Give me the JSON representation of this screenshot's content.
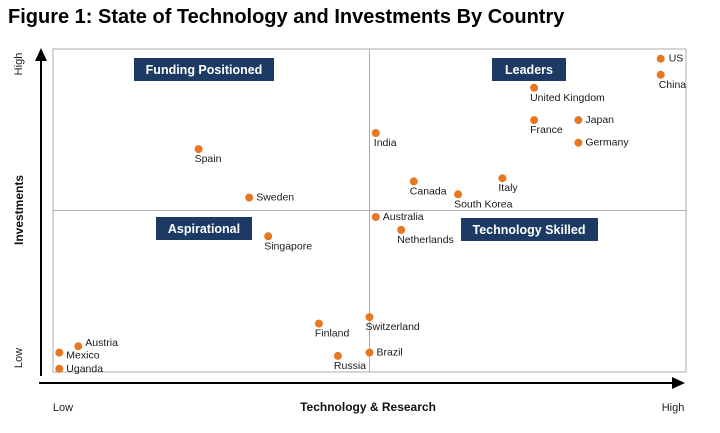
{
  "title": "Figure 1: State of Technology and Investments By Country",
  "colors": {
    "marker": "#e87722",
    "quadrant_box": "#1c3a64",
    "quadrant_text": "#ffffff",
    "border": "#9a9a9a",
    "axis": "#000000"
  },
  "chart_data": {
    "type": "scatter",
    "title": "Figure 1: State of Technology and Investments By Country",
    "xlabel": "Technology & Research",
    "ylabel": "Investments",
    "x_ticks": [
      "Low",
      "High"
    ],
    "y_ticks": [
      "Low",
      "High"
    ],
    "xlim": [
      0,
      100
    ],
    "ylim": [
      0,
      100
    ],
    "grid": false,
    "quadrant_dividers": {
      "x": 50,
      "y": 50
    },
    "quadrant_labels": [
      "Funding Positioned",
      "Leaders",
      "Aspirational",
      "Technology Skilled"
    ],
    "points": [
      {
        "label": "US",
        "x": 96,
        "y": 97
      },
      {
        "label": "China",
        "x": 96,
        "y": 92
      },
      {
        "label": "United Kingdom",
        "x": 76,
        "y": 88
      },
      {
        "label": "Japan",
        "x": 83,
        "y": 78
      },
      {
        "label": "France",
        "x": 76,
        "y": 78
      },
      {
        "label": "Germany",
        "x": 83,
        "y": 71
      },
      {
        "label": "India",
        "x": 51,
        "y": 74
      },
      {
        "label": "Spain",
        "x": 23,
        "y": 69
      },
      {
        "label": "Canada",
        "x": 57,
        "y": 59
      },
      {
        "label": "Italy",
        "x": 71,
        "y": 60
      },
      {
        "label": "South Korea",
        "x": 64,
        "y": 55
      },
      {
        "label": "Sweden",
        "x": 31,
        "y": 54
      },
      {
        "label": "Australia",
        "x": 51,
        "y": 48
      },
      {
        "label": "Netherlands",
        "x": 55,
        "y": 44
      },
      {
        "label": "Singapore",
        "x": 34,
        "y": 42
      },
      {
        "label": "Switzerland",
        "x": 50,
        "y": 17
      },
      {
        "label": "Finland",
        "x": 42,
        "y": 15
      },
      {
        "label": "Brazil",
        "x": 50,
        "y": 6
      },
      {
        "label": "Russia",
        "x": 45,
        "y": 5
      },
      {
        "label": "Austria",
        "x": 4,
        "y": 8
      },
      {
        "label": "Mexico",
        "x": 1,
        "y": 6
      },
      {
        "label": "Uganda",
        "x": 1,
        "y": 1
      }
    ]
  }
}
